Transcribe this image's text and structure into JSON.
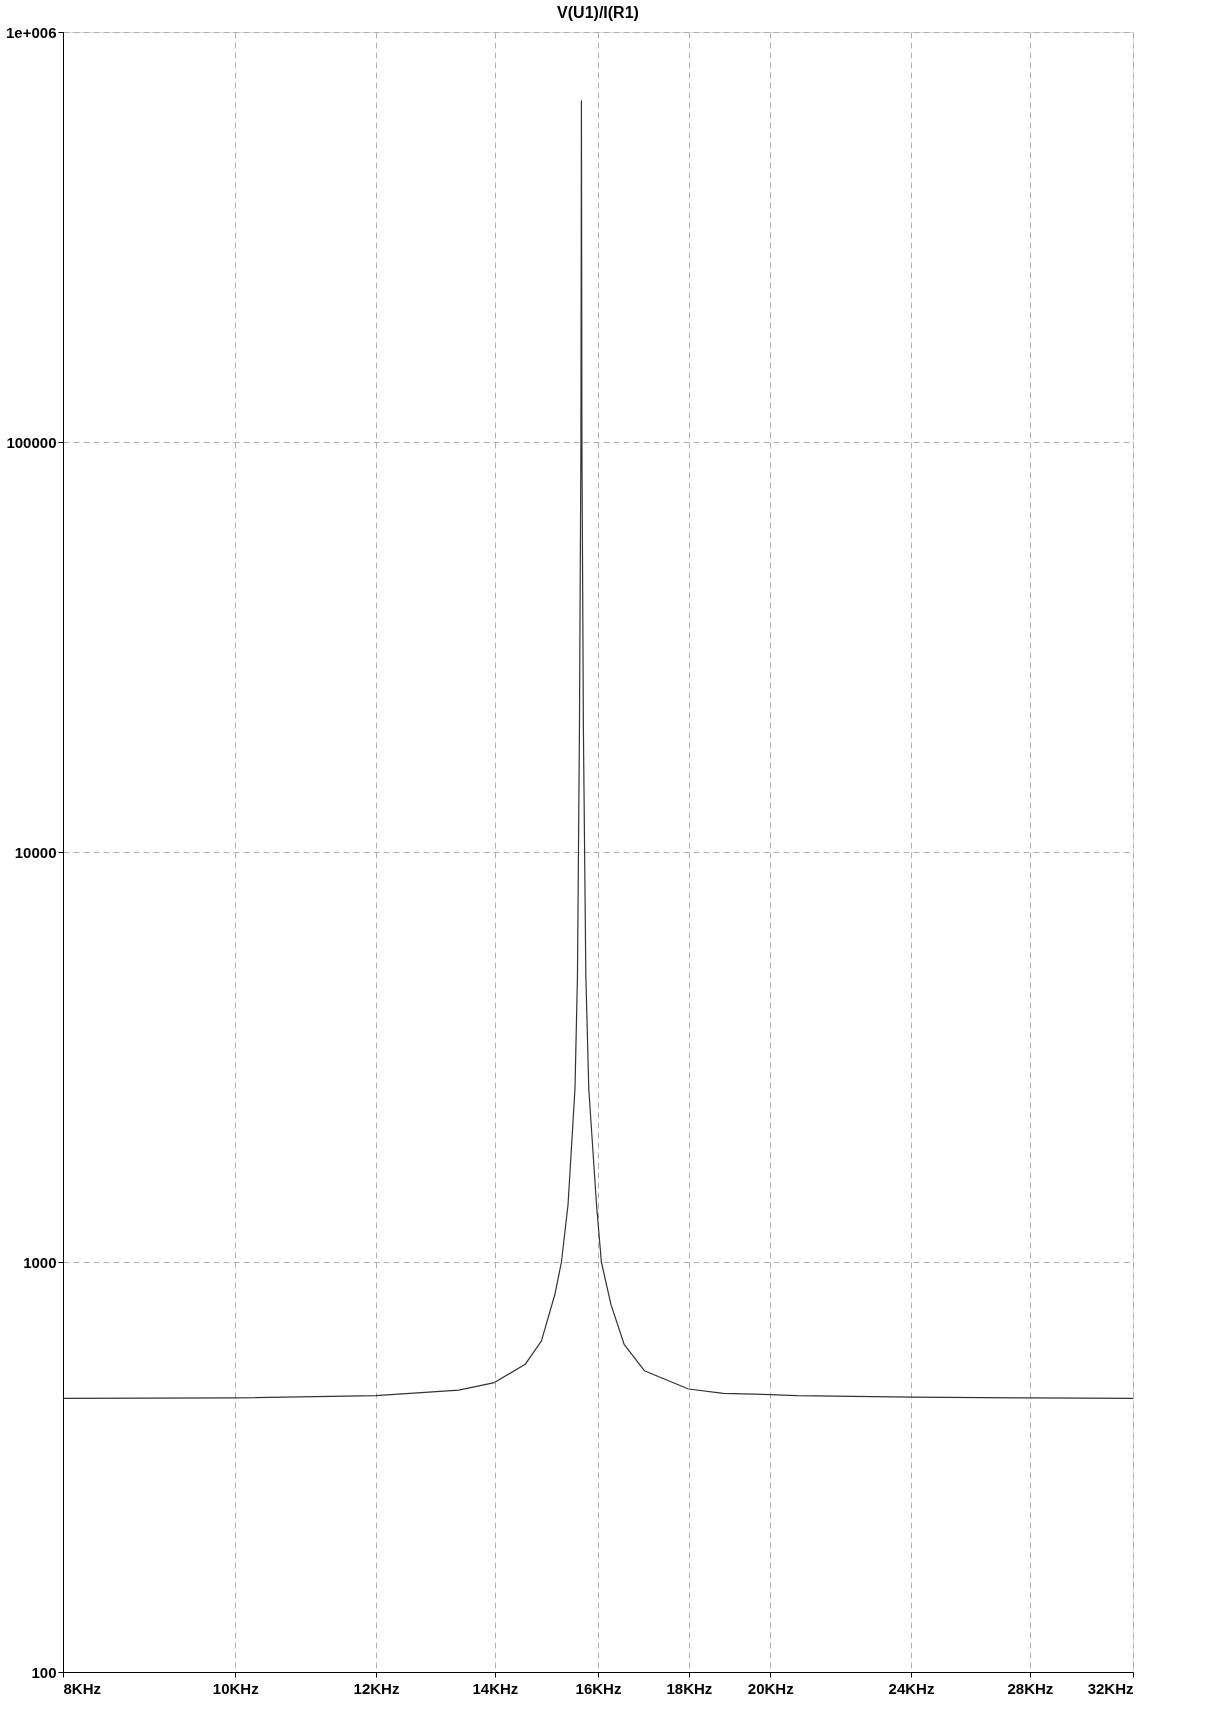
{
  "chart_data": {
    "type": "line",
    "title": "V(U1)/I(R1)",
    "log": "xy",
    "grid": true,
    "line_style": "solid",
    "marker": "none",
    "x": [
      8,
      10,
      12,
      13.36,
      13.99,
      14.56,
      14.87,
      15.13,
      15.26,
      15.39,
      15.49,
      15.53,
      15.58,
      15.62,
      15.65,
      15.66,
      15.67,
      15.7,
      15.75,
      15.81,
      15.97,
      16.07,
      16.27,
      16.55,
      16.99,
      17.99,
      18.82,
      20,
      20.7,
      24,
      28,
      32
    ],
    "series": [
      {
        "color": "#333333",
        "values": [
          465,
          466,
          472,
          487,
          508,
          563,
          642,
          833,
          1000,
          1377,
          2196,
          2645,
          5000,
          20000,
          100000,
          679000,
          100000,
          20000,
          5000,
          2645,
          1377,
          1000,
          788,
          630,
          543,
          490,
          478,
          475,
          472,
          468,
          466,
          465
        ]
      }
    ],
    "xlim": [
      8,
      32
    ],
    "ylim": [
      100,
      1000000
    ],
    "xticks": [
      {
        "value": 8,
        "label": "8KHz"
      },
      {
        "value": 10,
        "label": "10KHz"
      },
      {
        "value": 12,
        "label": "12KHz"
      },
      {
        "value": 14,
        "label": "14KHz"
      },
      {
        "value": 16,
        "label": "16KHz"
      },
      {
        "value": 18,
        "label": "18KHz"
      },
      {
        "value": 20,
        "label": "20KHz"
      },
      {
        "value": 24,
        "label": "24KHz"
      },
      {
        "value": 28,
        "label": "28KHz"
      },
      {
        "value": 32,
        "label": "32KHz"
      }
    ],
    "yticks": [
      100,
      1000,
      10000,
      100000,
      {
        "value": 1000000,
        "label": "1e+006"
      }
    ]
  }
}
